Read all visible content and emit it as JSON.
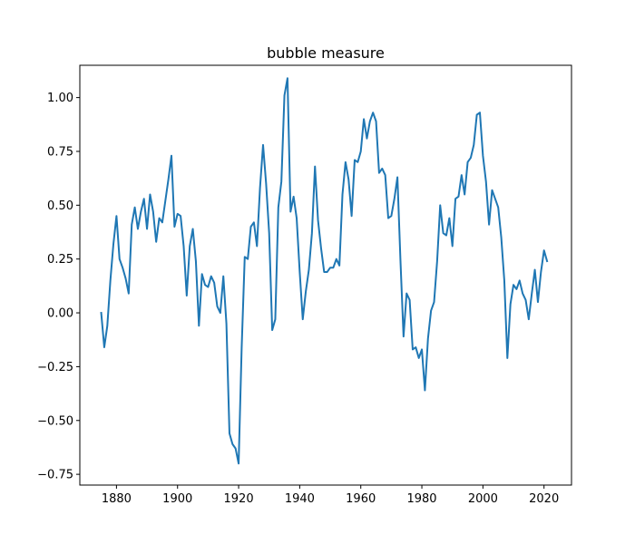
{
  "chart_data": {
    "type": "line",
    "title": "bubble measure",
    "xlabel": "",
    "ylabel": "",
    "xlim": [
      1868,
      2029
    ],
    "ylim": [
      -0.8,
      1.15
    ],
    "grid": false,
    "x_ticks": [
      1880,
      1900,
      1920,
      1940,
      1960,
      1980,
      2000,
      2020
    ],
    "x_tick_labels": [
      "1880",
      "1900",
      "1920",
      "1940",
      "1960",
      "1980",
      "2000",
      "2020"
    ],
    "y_ticks": [
      -0.75,
      -0.5,
      -0.25,
      0.0,
      0.25,
      0.5,
      0.75,
      1.0
    ],
    "y_tick_labels": [
      "−0.75",
      "−0.50",
      "−0.25",
      "0.00",
      "0.25",
      "0.50",
      "0.75",
      "1.00"
    ],
    "series": [
      {
        "color": "#1f77b4",
        "x": [
          1875,
          1876,
          1877,
          1878,
          1879,
          1880,
          1881,
          1882,
          1883,
          1884,
          1885,
          1886,
          1887,
          1888,
          1889,
          1890,
          1891,
          1892,
          1893,
          1894,
          1895,
          1896,
          1897,
          1898,
          1899,
          1900,
          1901,
          1902,
          1903,
          1904,
          1905,
          1906,
          1907,
          1908,
          1909,
          1910,
          1911,
          1912,
          1913,
          1914,
          1915,
          1916,
          1917,
          1918,
          1919,
          1920,
          1921,
          1922,
          1923,
          1924,
          1925,
          1926,
          1927,
          1928,
          1929,
          1930,
          1931,
          1932,
          1933,
          1934,
          1935,
          1936,
          1937,
          1938,
          1939,
          1940,
          1941,
          1942,
          1943,
          1944,
          1945,
          1946,
          1947,
          1948,
          1949,
          1950,
          1951,
          1952,
          1953,
          1954,
          1955,
          1956,
          1957,
          1958,
          1959,
          1960,
          1961,
          1962,
          1963,
          1964,
          1965,
          1966,
          1967,
          1968,
          1969,
          1970,
          1971,
          1972,
          1973,
          1974,
          1975,
          1976,
          1977,
          1978,
          1979,
          1980,
          1981,
          1982,
          1983,
          1984,
          1985,
          1986,
          1987,
          1988,
          1989,
          1990,
          1991,
          1992,
          1993,
          1994,
          1995,
          1996,
          1997,
          1998,
          1999,
          2000,
          2001,
          2002,
          2003,
          2004,
          2005,
          2006,
          2007,
          2008,
          2009,
          2010,
          2011,
          2012,
          2013,
          2014,
          2015,
          2016,
          2017,
          2018,
          2019,
          2020,
          2021
        ],
        "values": [
          0.0,
          -0.16,
          -0.06,
          0.15,
          0.32,
          0.45,
          0.25,
          0.21,
          0.16,
          0.09,
          0.41,
          0.49,
          0.39,
          0.47,
          0.53,
          0.39,
          0.55,
          0.47,
          0.33,
          0.44,
          0.42,
          0.52,
          0.62,
          0.73,
          0.4,
          0.46,
          0.45,
          0.31,
          0.08,
          0.31,
          0.39,
          0.24,
          -0.06,
          0.18,
          0.13,
          0.12,
          0.17,
          0.14,
          0.03,
          0.0,
          0.17,
          -0.05,
          -0.56,
          -0.61,
          -0.63,
          -0.7,
          -0.16,
          0.26,
          0.25,
          0.4,
          0.42,
          0.31,
          0.58,
          0.78,
          0.6,
          0.37,
          -0.08,
          -0.03,
          0.49,
          0.61,
          1.01,
          1.09,
          0.47,
          0.54,
          0.44,
          0.19,
          -0.03,
          0.1,
          0.2,
          0.37,
          0.68,
          0.43,
          0.3,
          0.19,
          0.19,
          0.21,
          0.21,
          0.25,
          0.22,
          0.55,
          0.7,
          0.62,
          0.45,
          0.71,
          0.7,
          0.75,
          0.9,
          0.81,
          0.89,
          0.93,
          0.89,
          0.65,
          0.67,
          0.64,
          0.44,
          0.45,
          0.53,
          0.63,
          0.24,
          -0.11,
          0.09,
          0.06,
          -0.17,
          -0.16,
          -0.21,
          -0.17,
          -0.36,
          -0.12,
          0.01,
          0.05,
          0.24,
          0.5,
          0.37,
          0.36,
          0.44,
          0.31,
          0.53,
          0.54,
          0.64,
          0.55,
          0.7,
          0.72,
          0.78,
          0.92,
          0.93,
          0.73,
          0.61,
          0.41,
          0.57,
          0.53,
          0.49,
          0.35,
          0.15,
          -0.21,
          0.04,
          0.13,
          0.11,
          0.15,
          0.09,
          0.06,
          -0.03,
          0.09,
          0.2,
          0.05,
          0.19,
          0.29,
          0.24
        ]
      }
    ]
  }
}
